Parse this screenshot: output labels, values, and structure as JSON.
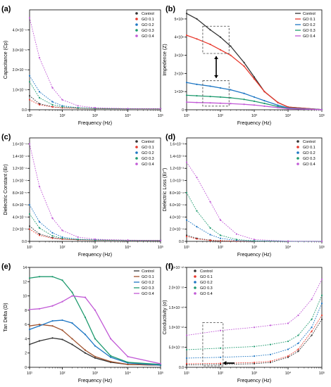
{
  "chart_data": [
    {
      "panel": "(a)",
      "type": "scatter",
      "xlabel": "Frequency (Hz)",
      "ylabel": "Capacitance (Cp)",
      "xscale": "log",
      "xlim": [
        10,
        100000
      ],
      "ylim": [
        0,
        5e-09
      ],
      "xticks": [
        10,
        100,
        1000,
        10000,
        100000
      ],
      "xtick_labels": [
        "10¹",
        "10²",
        "10³",
        "10⁴",
        "10⁵"
      ],
      "yticks": [
        0,
        1e-09,
        2e-09,
        3e-09,
        4e-09
      ],
      "ytick_labels": [
        "0.0",
        "1.0×10⁻⁹",
        "2.0×10⁻⁹",
        "3.0×10⁻⁹",
        "4.0×10⁻⁹"
      ],
      "legend_position": "top-right",
      "series": [
        {
          "name": "Control",
          "color": "#333333",
          "x": [
            10,
            20,
            50,
            100,
            300,
            1000,
            10000,
            100000
          ],
          "y": [
            7e-10,
            3e-10,
            1.5e-10,
            1e-10,
            8e-11,
            6e-11,
            5e-11,
            5e-11
          ]
        },
        {
          "name": "GO 0.1",
          "color": "#e8372b",
          "x": [
            10,
            20,
            50,
            100,
            300,
            1000,
            10000,
            100000
          ],
          "y": [
            5e-10,
            2.5e-10,
            1.4e-10,
            1e-10,
            8e-11,
            6e-11,
            5e-11,
            5e-11
          ]
        },
        {
          "name": "GO 0.2",
          "color": "#1f77c4",
          "x": [
            10,
            20,
            50,
            100,
            300,
            1000,
            10000,
            100000
          ],
          "y": [
            1.7e-09,
            9e-10,
            4e-10,
            2e-10,
            1e-10,
            7e-11,
            5e-11,
            5e-11
          ]
        },
        {
          "name": "GO 0.3",
          "color": "#1e9a6e",
          "x": [
            10,
            20,
            50,
            100,
            300,
            1000,
            10000,
            100000
          ],
          "y": [
            1.4e-09,
            6e-10,
            2.5e-10,
            1.5e-10,
            9e-11,
            6e-11,
            5e-11,
            5e-11
          ]
        },
        {
          "name": "GO 0.4",
          "color": "#c159d6",
          "x": [
            10,
            20,
            50,
            100,
            300,
            1000,
            10000,
            100000
          ],
          "y": [
            4.6e-09,
            2.6e-09,
            1.1e-09,
            5e-10,
            2e-10,
            1e-10,
            6e-11,
            5e-11
          ]
        }
      ]
    },
    {
      "panel": "(b)",
      "type": "line",
      "xlabel": "Frequency (Hz)",
      "ylabel": "Impedence (Z)",
      "xscale": "log",
      "xlim": [
        10,
        100000
      ],
      "ylim": [
        0,
        550000000.0
      ],
      "xticks": [
        10,
        100,
        1000,
        10000,
        100000
      ],
      "xtick_labels": [
        "10¹",
        "10²",
        "10³",
        "10⁴",
        "10⁵"
      ],
      "yticks": [
        0,
        100000000.0,
        200000000.0,
        300000000.0,
        400000000.0,
        500000000.0
      ],
      "ytick_labels": [
        "0",
        "1×10⁸",
        "2×10⁸",
        "3×10⁸",
        "4×10⁸",
        "5×10⁸"
      ],
      "legend_position": "top-right",
      "annotations": [
        "dashed box at top curves",
        "dashed box at bottom curves",
        "double-headed arrow between boxes"
      ],
      "series": [
        {
          "name": "Control",
          "color": "#333333",
          "x": [
            10,
            20,
            50,
            100,
            200,
            500,
            1000,
            2000,
            5000,
            10000,
            100000
          ],
          "y": [
            530000000.0,
            500000000.0,
            440000000.0,
            400000000.0,
            350000000.0,
            260000000.0,
            180000000.0,
            100000000.0,
            40000000.0,
            15000000.0,
            1000000.0
          ]
        },
        {
          "name": "GO 0.1",
          "color": "#e8372b",
          "x": [
            10,
            20,
            50,
            100,
            200,
            500,
            1000,
            2000,
            5000,
            10000,
            100000
          ],
          "y": [
            410000000.0,
            390000000.0,
            360000000.0,
            330000000.0,
            300000000.0,
            240000000.0,
            170000000.0,
            100000000.0,
            40000000.0,
            15000000.0,
            1000000.0
          ]
        },
        {
          "name": "GO 0.2",
          "color": "#1f77c4",
          "x": [
            10,
            20,
            50,
            100,
            200,
            500,
            1000,
            2000,
            5000,
            10000,
            100000
          ],
          "y": [
            150000000.0,
            140000000.0,
            130000000.0,
            120000000.0,
            110000000.0,
            90000000.0,
            70000000.0,
            50000000.0,
            25000000.0,
            10000000.0,
            1000000.0
          ]
        },
        {
          "name": "GO 0.3",
          "color": "#1e9a6e",
          "x": [
            10,
            20,
            50,
            100,
            200,
            500,
            1000,
            2000,
            5000,
            10000,
            100000
          ],
          "y": [
            80000000.0,
            77000000.0,
            73000000.0,
            70000000.0,
            66000000.0,
            57000000.0,
            47000000.0,
            35000000.0,
            18000000.0,
            8000000.0,
            1000000.0
          ]
        },
        {
          "name": "GO 0.4",
          "color": "#c159d6",
          "x": [
            10,
            20,
            50,
            100,
            200,
            500,
            1000,
            2000,
            5000,
            10000,
            100000
          ],
          "y": [
            42000000.0,
            40000000.0,
            38000000.0,
            36000000.0,
            34000000.0,
            30000000.0,
            26000000.0,
            20000000.0,
            12000000.0,
            6000000.0,
            800000.0
          ]
        }
      ]
    },
    {
      "panel": "(c)",
      "type": "scatter",
      "xlabel": "Frequency (Hz)",
      "ylabel": "Dielectric Constant (Er)",
      "xscale": "log",
      "xlim": [
        10,
        100000
      ],
      "ylim": [
        0,
        0.00017
      ],
      "xticks": [
        10,
        100,
        1000,
        10000,
        100000
      ],
      "xtick_labels": [
        "10¹",
        "10²",
        "10³",
        "10⁴",
        "10⁵"
      ],
      "yticks": [
        0,
        2e-05,
        4e-05,
        6e-05,
        8e-05,
        0.0001,
        0.00012,
        0.00014,
        0.00016
      ],
      "ytick_labels": [
        "0.0",
        "2.0×10⁻⁵",
        "4.0×10⁻⁵",
        "6.0×10⁻⁵",
        "8.0×10⁻⁵",
        "1.0×10⁻⁴",
        "1.2×10⁻⁴",
        "1.4×10⁻⁴",
        "1.6×10⁻⁴"
      ],
      "legend_position": "top-right",
      "series": [
        {
          "name": "Control",
          "color": "#333333",
          "x": [
            10,
            20,
            50,
            100,
            300,
            1000,
            10000,
            100000
          ],
          "y": [
            2.5e-05,
            1.2e-05,
            6e-06,
            4e-06,
            2.5e-06,
            2e-06,
            1.5e-06,
            1.5e-06
          ]
        },
        {
          "name": "GO 0.1",
          "color": "#e8372b",
          "x": [
            10,
            20,
            50,
            100,
            300,
            1000,
            10000,
            100000
          ],
          "y": [
            2e-05,
            1e-05,
            5e-06,
            3.5e-06,
            2.5e-06,
            2e-06,
            1.5e-06,
            1.5e-06
          ]
        },
        {
          "name": "GO 0.2",
          "color": "#1f77c4",
          "x": [
            10,
            20,
            50,
            100,
            300,
            1000,
            10000,
            100000
          ],
          "y": [
            6e-05,
            3.2e-05,
            1.4e-05,
            7e-06,
            3.5e-06,
            2.5e-06,
            1.5e-06,
            1.5e-06
          ]
        },
        {
          "name": "GO 0.3",
          "color": "#1e9a6e",
          "x": [
            10,
            20,
            50,
            100,
            300,
            1000,
            10000,
            100000
          ],
          "y": [
            4.5e-05,
            2.2e-05,
            9e-06,
            5e-06,
            3e-06,
            2e-06,
            1.5e-06,
            1.5e-06
          ]
        },
        {
          "name": "GO 0.4",
          "color": "#c159d6",
          "x": [
            10,
            20,
            50,
            100,
            300,
            1000,
            10000,
            100000
          ],
          "y": [
            0.00016,
            9e-05,
            3.8e-05,
            1.8e-05,
            7e-06,
            3.5e-06,
            2e-06,
            1.5e-06
          ]
        }
      ]
    },
    {
      "panel": "(d)",
      "type": "scatter",
      "xlabel": "Frequency (Hz)",
      "ylabel": "Dielectric Loss (Er'')",
      "xscale": "log",
      "xlim": [
        10,
        100000
      ],
      "ylim": [
        0,
        0.0017
      ],
      "xticks": [
        10,
        100,
        1000,
        10000,
        100000
      ],
      "xtick_labels": [
        "10¹",
        "10²",
        "10³",
        "10⁴",
        "10⁵"
      ],
      "yticks": [
        0,
        0.0002,
        0.0004,
        0.0006,
        0.0008,
        0.001,
        0.0012,
        0.0014,
        0.0016
      ],
      "ytick_labels": [
        "0.0",
        "2.0×10⁻⁴",
        "4.0×10⁻⁴",
        "6.0×10⁻⁴",
        "8.0×10⁻⁴",
        "1.0×10⁻³",
        "1.2×10⁻³",
        "1.4×10⁻³",
        "1.6×10⁻³"
      ],
      "legend_position": "top-right",
      "series": [
        {
          "name": "Control",
          "color": "#333333",
          "x": [
            10,
            20,
            50,
            100,
            300,
            1000,
            10000,
            100000
          ],
          "y": [
            0.0001,
            5e-05,
            2e-05,
            1e-05,
            5e-06,
            2e-06,
            1e-06,
            1e-06
          ]
        },
        {
          "name": "GO 0.1",
          "color": "#e8372b",
          "x": [
            10,
            20,
            50,
            100,
            300,
            1000,
            10000,
            100000
          ],
          "y": [
            8e-05,
            4e-05,
            1.6e-05,
            8e-06,
            4e-06,
            2e-06,
            1e-06,
            1e-06
          ]
        },
        {
          "name": "GO 0.2",
          "color": "#1f77c4",
          "x": [
            10,
            20,
            50,
            100,
            300,
            1000,
            10000,
            100000
          ],
          "y": [
            0.00035,
            0.00024,
            0.00011,
            5e-05,
            1.5e-05,
            4e-06,
            1e-06,
            1e-06
          ]
        },
        {
          "name": "GO 0.3",
          "color": "#1e9a6e",
          "x": [
            10,
            20,
            50,
            100,
            300,
            1000,
            10000,
            100000
          ],
          "y": [
            0.0008,
            0.0005,
            0.00022,
            0.0001,
            3e-05,
            8e-06,
            1e-06,
            1e-06
          ]
        },
        {
          "name": "GO 0.4",
          "color": "#c159d6",
          "x": [
            10,
            20,
            50,
            100,
            300,
            1000,
            10000,
            100000
          ],
          "y": [
            0.0013,
            0.00105,
            0.00065,
            0.00035,
            0.00012,
            3e-05,
            3e-06,
            1e-06
          ]
        }
      ]
    },
    {
      "panel": "(e)",
      "type": "line",
      "xlabel": "Frequency (Hz)",
      "ylabel": "Tan Delta (D)",
      "xscale": "log",
      "xlim": [
        10,
        100000
      ],
      "ylim": [
        0,
        14
      ],
      "xticks": [
        10,
        100,
        1000,
        10000,
        100000
      ],
      "xtick_labels": [
        "10¹",
        "10²",
        "10³",
        "10⁴",
        "10⁵"
      ],
      "yticks": [
        0,
        2,
        4,
        6,
        8,
        10,
        12,
        14
      ],
      "ytick_labels": [
        "0",
        "2",
        "4",
        "6",
        "8",
        "10",
        "12",
        "14"
      ],
      "legend_position": "top-right",
      "series": [
        {
          "name": "Control",
          "color": "#333333",
          "x": [
            10,
            20,
            50,
            100,
            200,
            500,
            1000,
            3000,
            10000,
            100000
          ],
          "y": [
            3.2,
            3.7,
            4.1,
            3.9,
            3.2,
            2.0,
            1.3,
            0.7,
            0.4,
            0.3
          ]
        },
        {
          "name": "GO 0.1",
          "color": "#a0522d",
          "x": [
            10,
            20,
            50,
            100,
            200,
            500,
            1000,
            3000,
            10000,
            100000
          ],
          "y": [
            5.8,
            6.0,
            5.8,
            5.2,
            4.0,
            2.4,
            1.5,
            0.8,
            0.4,
            0.3
          ]
        },
        {
          "name": "GO 0.2",
          "color": "#1f77c4",
          "x": [
            10,
            20,
            50,
            100,
            200,
            500,
            1000,
            3000,
            10000,
            100000
          ],
          "y": [
            5.3,
            5.8,
            6.5,
            6.6,
            6.2,
            4.6,
            3.0,
            1.4,
            0.6,
            0.3
          ]
        },
        {
          "name": "GO 0.3",
          "color": "#1e9a6e",
          "x": [
            10,
            20,
            50,
            100,
            200,
            500,
            1000,
            3000,
            10000,
            100000
          ],
          "y": [
            12.5,
            12.7,
            12.7,
            12.2,
            10.5,
            7.0,
            4.0,
            1.6,
            0.7,
            0.4
          ]
        },
        {
          "name": "GO 0.4",
          "color": "#c159d6",
          "x": [
            10,
            20,
            50,
            100,
            200,
            500,
            1000,
            3000,
            10000,
            100000
          ],
          "y": [
            8.1,
            8.2,
            8.6,
            9.2,
            10.0,
            9.8,
            8.0,
            4.0,
            1.5,
            0.5
          ]
        }
      ]
    },
    {
      "panel": "(f)",
      "type": "scatter",
      "xlabel": "Frequency (Hz)",
      "ylabel": "Conductivity (σ)",
      "xscale": "log",
      "xlim": [
        10,
        100000
      ],
      "ylim": [
        0,
        2.5e-12
      ],
      "xticks": [
        10,
        100,
        1000,
        10000,
        100000
      ],
      "xtick_labels": [
        "10¹",
        "10²",
        "10³",
        "10⁴",
        "10⁵"
      ],
      "yticks": [
        0,
        5e-13,
        1e-12,
        1.5e-12,
        2e-12,
        2.5e-12
      ],
      "ytick_labels": [
        "0.0",
        "5.0×10⁻¹³",
        "1.0×10⁻¹²",
        "1.5×10⁻¹²",
        "2.0×10⁻¹²",
        "2.5×10⁻¹²"
      ],
      "legend_position": "top-left",
      "annotations": [
        "dashed box near 10²",
        "left-pointing arrow"
      ],
      "series": [
        {
          "name": "Control",
          "color": "#333333",
          "x": [
            10,
            100,
            1000,
            3000,
            10000,
            20000,
            50000,
            100000
          ],
          "y": [
            6e-14,
            7e-14,
            9e-14,
            1.2e-13,
            2.5e-13,
            4e-13,
            8e-13,
            1.2e-12
          ]
        },
        {
          "name": "GO 0.1",
          "color": "#e8372b",
          "x": [
            10,
            100,
            1000,
            3000,
            10000,
            20000,
            50000,
            100000
          ],
          "y": [
            9e-14,
            1e-13,
            1.2e-13,
            1.5e-13,
            2.8e-13,
            4.5e-13,
            9e-13,
            1.3e-12
          ]
        },
        {
          "name": "GO 0.2",
          "color": "#1f77c4",
          "x": [
            10,
            100,
            1000,
            3000,
            10000,
            20000,
            50000,
            100000
          ],
          "y": [
            2.3e-13,
            2.5e-13,
            2.8e-13,
            3.2e-13,
            4.5e-13,
            6e-13,
            1e-12,
            1.6e-12
          ]
        },
        {
          "name": "GO 0.3",
          "color": "#1e9a6e",
          "x": [
            10,
            100,
            1000,
            3000,
            10000,
            20000,
            50000,
            100000
          ],
          "y": [
            4.4e-13,
            4.8e-13,
            5.2e-13,
            5.7e-13,
            6.5e-13,
            8e-13,
            1.2e-12,
            1.8e-12
          ]
        },
        {
          "name": "GO 0.4",
          "color": "#c159d6",
          "x": [
            10,
            100,
            1000,
            3000,
            10000,
            20000,
            50000,
            100000
          ],
          "y": [
            8e-13,
            9.2e-13,
            1e-12,
            1.05e-12,
            1.1e-12,
            1.3e-12,
            1.7e-12,
            2.2e-12
          ]
        }
      ]
    }
  ]
}
